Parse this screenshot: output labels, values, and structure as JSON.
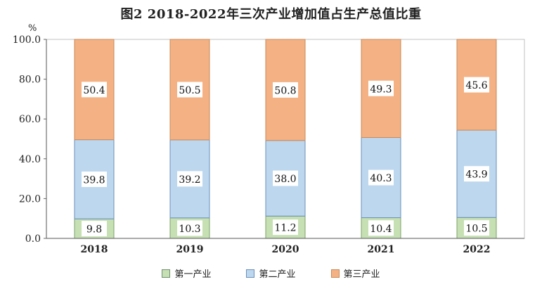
{
  "title": "图2  2018-2022年三次产业增加值占生产总值比重",
  "chart_data": {
    "type": "bar",
    "stacked": true,
    "title": "图2  2018-2022年三次产业增加值占生产总值比重",
    "unit_label": "%",
    "categories": [
      "2018",
      "2019",
      "2020",
      "2021",
      "2022"
    ],
    "ylim": [
      0,
      100
    ],
    "yticks": [
      "0.0",
      "20.0",
      "40.0",
      "60.0",
      "80.0",
      "100.0"
    ],
    "grid": false,
    "legend_position": "bottom",
    "series": [
      {
        "name": "第一产业",
        "values": [
          9.8,
          10.3,
          11.2,
          10.4,
          10.5
        ],
        "labels": [
          "9.8",
          "10.3",
          "11.2",
          "10.4",
          "10.5"
        ],
        "color": "#c6e0b4"
      },
      {
        "name": "第二产业",
        "values": [
          39.8,
          39.2,
          38.0,
          40.3,
          43.9
        ],
        "labels": [
          "39.8",
          "39.2",
          "38.0",
          "40.3",
          "43.9"
        ],
        "color": "#bdd7ee"
      },
      {
        "name": "第三产业",
        "values": [
          50.4,
          50.5,
          50.8,
          49.3,
          45.6
        ],
        "labels": [
          "50.4",
          "50.5",
          "50.8",
          "49.3",
          "45.6"
        ],
        "color": "#f4b183"
      }
    ]
  }
}
